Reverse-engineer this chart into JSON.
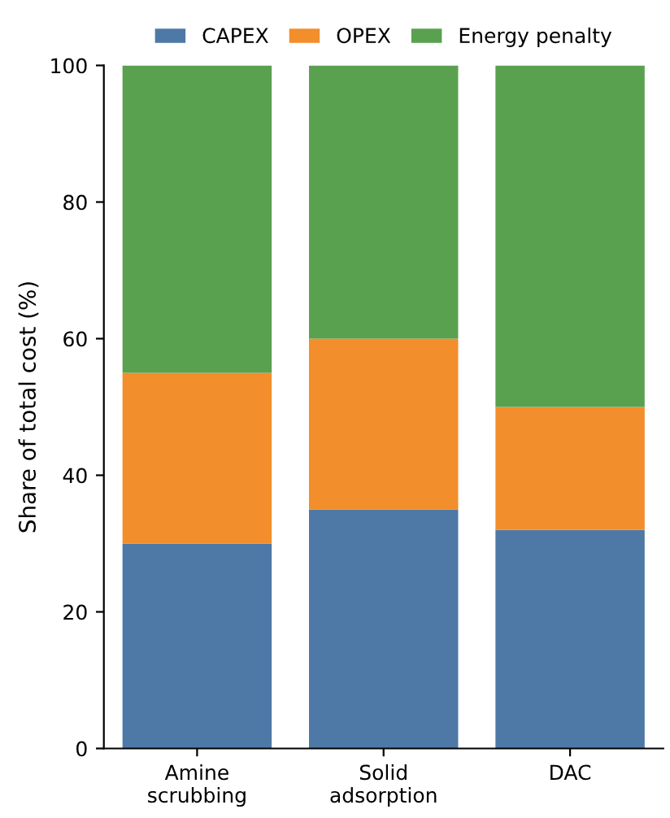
{
  "chart_data": {
    "type": "bar",
    "stacked": true,
    "ylabel": "Share of total cost (%)",
    "categories": [
      "Amine\nscrubbing",
      "Solid\nadsorption",
      "DAC"
    ],
    "series": [
      {
        "name": "CAPEX",
        "color": "#4e79a7",
        "values": [
          30,
          35,
          32
        ]
      },
      {
        "name": "OPEX",
        "color": "#f28e2b",
        "values": [
          25,
          25,
          18
        ]
      },
      {
        "name": "Energy penalty",
        "color": "#59a14f",
        "values": [
          45,
          40,
          50
        ]
      }
    ],
    "ylim": [
      0,
      100
    ],
    "yticks": [
      0,
      20,
      40,
      60,
      80,
      100
    ],
    "grid": false,
    "legend": "top"
  }
}
